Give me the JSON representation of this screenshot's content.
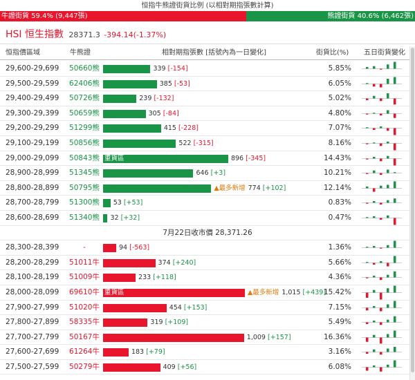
{
  "header": {
    "title": "恒指牛熊證街貨比例 (以相對期指張數計算)",
    "bull_label": "牛證街貨 59.4% (9,447張)",
    "bear_label": "熊證街貨 40.6% (6,462張)",
    "bull_ratio": 0.594
  },
  "index": {
    "name": "HSI 恒生指數",
    "value": "28371.3",
    "change": "-394.14(-1.37%)"
  },
  "columns": {
    "range": "恒指價區域",
    "code": "牛熊證",
    "contracts": "相對期指張數 [括號內為一日變化]",
    "ratio": "街貨比(%)",
    "trend": "五日街貨變化"
  },
  "close_note": "7月22日收市價 28,371.26",
  "bear_rows": [
    {
      "range": "29,600-29,699",
      "code": "50660熊",
      "contracts": 339,
      "value": "339",
      "delta": "[-154]",
      "ratio": "5.85%",
      "spark": [
        2,
        3,
        -1,
        5,
        8
      ]
    },
    {
      "range": "29,500-29,599",
      "code": "62406熊",
      "contracts": 385,
      "value": "385",
      "delta": "[-53]",
      "ratio": "6.05%",
      "spark": [
        1,
        -3,
        -4,
        6,
        8
      ]
    },
    {
      "range": "29,400-29,499",
      "code": "50726熊",
      "contracts": 239,
      "value": "239",
      "delta": "[-132]",
      "ratio": "5.02%",
      "spark": [
        -2,
        3,
        -3,
        6,
        -7
      ]
    },
    {
      "range": "29,300-29,399",
      "code": "50659熊",
      "contracts": 305,
      "value": "305",
      "delta": "[-84]",
      "ratio": "4.80%",
      "spark": [
        -1,
        1,
        -2,
        4,
        -5
      ]
    },
    {
      "range": "29,200-29,299",
      "code": "51299熊",
      "contracts": 415,
      "value": "415",
      "delta": "[-228]",
      "ratio": "7.07%",
      "spark": [
        1,
        -2,
        2,
        -3,
        -8
      ]
    },
    {
      "range": "29,100-29,199",
      "code": "50856熊",
      "contracts": 522,
      "value": "522",
      "delta": "[-315]",
      "ratio": "8.16%",
      "spark": [
        -1,
        1,
        -3,
        2,
        -8
      ]
    },
    {
      "range": "29,000-29,099",
      "code": "50843熊",
      "contracts": 896,
      "value": "896",
      "delta": "[-345]",
      "ratio": "14.43%",
      "heavy": "重貨區",
      "spark": [
        -1,
        2,
        -3,
        3,
        -8
      ]
    },
    {
      "range": "28,900-28,999",
      "code": "51345熊",
      "contracts": 646,
      "value": "646",
      "delta": "[+3]",
      "ratio": "10.21%",
      "spark": [
        -1,
        3,
        -2,
        4,
        1
      ]
    },
    {
      "range": "28,800-28,899",
      "code": "50795熊",
      "contracts": 774,
      "value": "774",
      "delta": "[+102]",
      "ratio": "12.14%",
      "new": "▲最多新增",
      "spark": [
        2,
        -4,
        3,
        4,
        8
      ]
    },
    {
      "range": "28,700-28,799",
      "code": "51300熊",
      "contracts": 53,
      "value": "53",
      "delta": "[+53]",
      "ratio": "0.83%",
      "spark": [
        -1,
        2,
        -2,
        3,
        5
      ]
    },
    {
      "range": "28,600-28,699",
      "code": "51340熊",
      "contracts": 32,
      "value": "32",
      "delta": "[+32]",
      "ratio": "0.47%",
      "spark": [
        1,
        2,
        -2,
        3,
        -8
      ]
    }
  ],
  "bull_rows": [
    {
      "range": "28,300-28,399",
      "code": "-",
      "contracts": 94,
      "value": "94",
      "delta": "[-563]",
      "ratio": "1.36%",
      "spark": [
        1,
        2,
        -1,
        3,
        8
      ]
    },
    {
      "range": "28,200-28,299",
      "code": "51011牛",
      "contracts": 374,
      "value": "374",
      "delta": "[+240]",
      "ratio": "5.66%",
      "spark": [
        1,
        -2,
        2,
        -4,
        8
      ]
    },
    {
      "range": "28,100-28,199",
      "code": "51009牛",
      "contracts": 233,
      "value": "233",
      "delta": "[+118]",
      "ratio": "4.36%",
      "spark": [
        -1,
        2,
        -3,
        3,
        7
      ]
    },
    {
      "range": "28,000-28,099",
      "code": "69610牛",
      "contracts": 1015,
      "value": "1,015",
      "delta": "[+439]",
      "ratio": "15.42%",
      "heavy": "重貨區",
      "new": "▲最多新增",
      "spark": [
        -6,
        3,
        -8,
        5,
        8
      ]
    },
    {
      "range": "27,900-27,999",
      "code": "51020牛",
      "contracts": 454,
      "value": "454",
      "delta": "[+153]",
      "ratio": "7.15%",
      "spark": [
        -3,
        2,
        -4,
        4,
        8
      ]
    },
    {
      "range": "27,800-27,899",
      "code": "58335牛",
      "contracts": 319,
      "value": "319",
      "delta": "[+109]",
      "ratio": "5.49%",
      "spark": [
        -2,
        2,
        -3,
        3,
        7
      ]
    },
    {
      "range": "27,700-27,799",
      "code": "50167牛",
      "contracts": 1009,
      "value": "1,009",
      "delta": "[+157]",
      "ratio": "16.36%",
      "spark": [
        -5,
        3,
        -7,
        4,
        8
      ]
    },
    {
      "range": "27,600-27,699",
      "code": "61264牛",
      "contracts": 183,
      "value": "183",
      "delta": "[+79]",
      "ratio": "3.16%",
      "spark": [
        -2,
        3,
        -3,
        4,
        6
      ]
    },
    {
      "range": "27,500-27,599",
      "code": "50279牛",
      "contracts": 409,
      "value": "409",
      "delta": "[+56]",
      "ratio": "6.08%",
      "spark": [
        -4,
        2,
        -5,
        3,
        8
      ]
    }
  ],
  "colors": {
    "bull": "#e8152d",
    "bear": "#1a9447",
    "new": "#e07b10"
  }
}
